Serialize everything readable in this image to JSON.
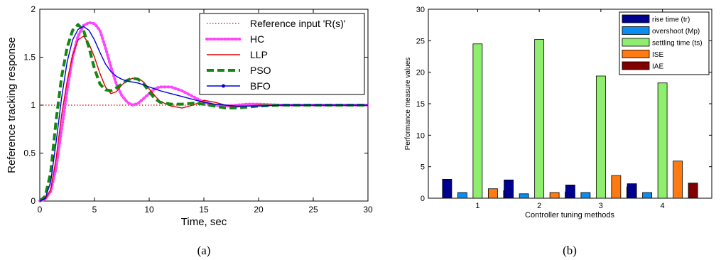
{
  "chart_data": [
    {
      "type": "line",
      "panel_label": "(a)",
      "xlabel": "Time, sec",
      "ylabel": "Reference tracking response",
      "xlim": [
        0,
        30
      ],
      "ylim": [
        0,
        2
      ],
      "xticks": [
        "0",
        "5",
        "10",
        "15",
        "20",
        "25",
        "30"
      ],
      "yticks": [
        "0",
        "0.5",
        "1",
        "1.5",
        "2"
      ],
      "grid": false,
      "legend_position": "top-right",
      "series": [
        {
          "name": "Reference input 'R(s)'",
          "color": "#e00000",
          "style": "dotted",
          "x": [
            0,
            30
          ],
          "y": [
            1,
            1
          ]
        },
        {
          "name": "HC",
          "color": "#ff44ff",
          "style": "dotted-thick",
          "x": [
            0,
            0.5,
            1,
            1.5,
            2,
            2.5,
            3,
            3.5,
            4,
            4.5,
            5,
            5.5,
            6,
            6.5,
            7,
            7.5,
            8,
            8.5,
            9,
            9.5,
            10,
            10.5,
            11,
            12,
            13,
            14,
            15,
            16,
            17,
            18,
            19,
            20,
            22,
            24,
            26,
            28,
            30
          ],
          "y": [
            0,
            0.02,
            0.1,
            0.35,
            0.75,
            1.15,
            1.5,
            1.72,
            1.83,
            1.86,
            1.85,
            1.78,
            1.6,
            1.4,
            1.22,
            1.1,
            1.03,
            1.0,
            1.02,
            1.07,
            1.12,
            1.17,
            1.19,
            1.19,
            1.15,
            1.09,
            1.03,
            1.0,
            0.99,
            1.0,
            1.01,
            1.01,
            1.0,
            1.0,
            1.0,
            1.0,
            1.0
          ]
        },
        {
          "name": "LLP",
          "color": "#e00000",
          "style": "solid",
          "x": [
            0,
            0.5,
            1,
            1.5,
            2,
            2.5,
            3,
            3.5,
            4,
            4.5,
            5,
            5.5,
            6,
            6.5,
            7,
            7.5,
            8,
            8.5,
            9,
            9.5,
            10,
            10.5,
            11,
            12,
            13,
            14,
            15,
            16,
            17,
            18,
            19,
            20,
            22,
            24,
            26,
            28,
            30
          ],
          "y": [
            0,
            0.02,
            0.12,
            0.45,
            0.9,
            1.25,
            1.52,
            1.68,
            1.72,
            1.64,
            1.5,
            1.33,
            1.19,
            1.12,
            1.14,
            1.21,
            1.26,
            1.28,
            1.28,
            1.24,
            1.17,
            1.1,
            1.04,
            0.99,
            0.97,
            1.0,
            1.05,
            1.03,
            1.0,
            0.98,
            0.99,
            1.0,
            1.0,
            1.0,
            1.0,
            1.0,
            1.0
          ]
        },
        {
          "name": "PSO",
          "color": "#118811",
          "style": "dashed-thick",
          "x": [
            0,
            0.5,
            1,
            1.5,
            2,
            2.5,
            3,
            3.5,
            4,
            4.5,
            5,
            5.5,
            6,
            6.5,
            7,
            7.5,
            8,
            8.5,
            9,
            9.5,
            10,
            10.5,
            11,
            12,
            13,
            14,
            15,
            16,
            17,
            18,
            19,
            20,
            22,
            24,
            26,
            28,
            30
          ],
          "y": [
            0,
            0.05,
            0.3,
            0.85,
            1.3,
            1.6,
            1.78,
            1.84,
            1.78,
            1.6,
            1.38,
            1.22,
            1.16,
            1.15,
            1.18,
            1.22,
            1.26,
            1.28,
            1.27,
            1.22,
            1.14,
            1.07,
            1.03,
            1.01,
            1.01,
            1.02,
            1.01,
            0.99,
            0.97,
            0.97,
            0.98,
            0.99,
            1.0,
            1.0,
            1.0,
            1.0,
            1.0
          ]
        },
        {
          "name": "BFO",
          "color": "#0000dd",
          "style": "solid-marker",
          "x": [
            0,
            0.5,
            1,
            1.5,
            2,
            2.5,
            3,
            3.5,
            4,
            4.5,
            5,
            5.5,
            6,
            6.5,
            7,
            7.5,
            8,
            8.5,
            9,
            9.5,
            10,
            10.5,
            11,
            12,
            13,
            14,
            15,
            16,
            17,
            18,
            19,
            20,
            22,
            24,
            26,
            28,
            30
          ],
          "y": [
            0,
            0.03,
            0.2,
            0.62,
            1.08,
            1.45,
            1.68,
            1.79,
            1.82,
            1.78,
            1.68,
            1.55,
            1.43,
            1.35,
            1.3,
            1.27,
            1.25,
            1.24,
            1.23,
            1.21,
            1.19,
            1.17,
            1.15,
            1.12,
            1.09,
            1.06,
            1.03,
            1.01,
            1.0,
            0.99,
            0.99,
            0.99,
            1.0,
            1.0,
            1.0,
            1.0,
            1.0
          ]
        }
      ]
    },
    {
      "type": "bar",
      "panel_label": "(b)",
      "xlabel": "Controller tuning methods",
      "ylabel": "Performance measure values",
      "ylim": [
        0,
        30
      ],
      "yticks": [
        "0",
        "5",
        "10",
        "15",
        "20",
        "25",
        "30"
      ],
      "categories": [
        "1",
        "2",
        "3",
        "4"
      ],
      "grid": false,
      "legend_position": "top-right",
      "series": [
        {
          "name": "rise time (tr)",
          "color": "#00008f",
          "values": [
            3.0,
            2.9,
            2.1,
            2.3
          ]
        },
        {
          "name": "overshoot (Mp)",
          "color": "#0a8cf0",
          "values": [
            0.9,
            0.7,
            0.9,
            0.9
          ]
        },
        {
          "name": "settling time (ts)",
          "color": "#90ee6e",
          "values": [
            24.5,
            25.2,
            19.4,
            18.3
          ]
        },
        {
          "name": "ISE",
          "color": "#ff7a10",
          "values": [
            1.5,
            0.9,
            3.6,
            5.9
          ]
        },
        {
          "name": "IAE",
          "color": "#800000",
          "values": [
            1.2,
            1.0,
            1.8,
            2.4
          ]
        }
      ]
    }
  ]
}
